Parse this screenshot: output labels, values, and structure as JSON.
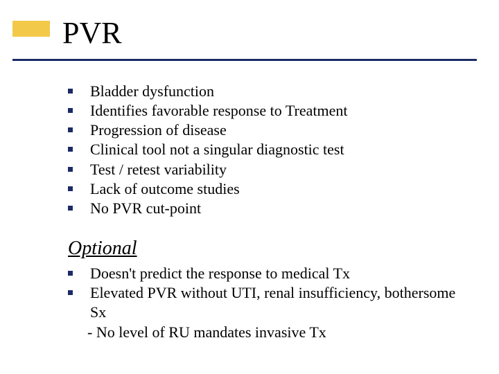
{
  "colors": {
    "accent_yellow": "#f3c94a",
    "accent_navy": "#1b2b66",
    "bullet_navy": "#1b2b66",
    "text": "#000000",
    "background": "#ffffff"
  },
  "title": "PVR",
  "bullets_main": [
    "Bladder dysfunction",
    "Identifies favorable response to Treatment",
    "Progression of disease",
    "Clinical tool not a singular diagnostic test",
    "Test / retest variability",
    "Lack of outcome studies",
    "No PVR cut-point"
  ],
  "subheading": "Optional",
  "bullets_optional": [
    "Doesn't predict the response to medical Tx",
    "Elevated PVR without UTI, renal insufficiency, bothersome Sx"
  ],
  "optional_subnote": "- No level of RU mandates invasive Tx"
}
